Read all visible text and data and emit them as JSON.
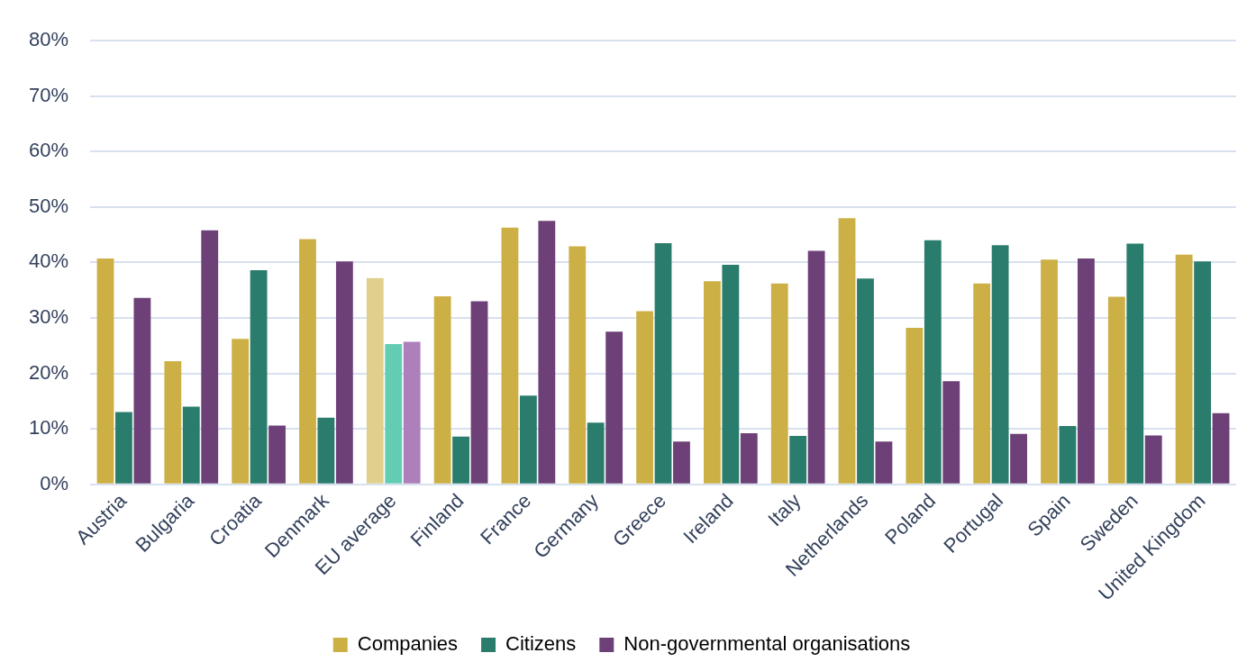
{
  "chart_data": {
    "type": "bar",
    "categories": [
      "Austria",
      "Bulgaria",
      "Croatia",
      "Denmark",
      "EU average",
      "Finland",
      "France",
      "Germany",
      "Greece",
      "Ireland",
      "Italy",
      "Netherlands",
      "Poland",
      "Portugal",
      "Spain",
      "Sweden",
      "United Kingdom"
    ],
    "series": [
      {
        "name": "Companies",
        "color": "#ccb045",
        "colors": [
          "#ccb045",
          "#ccb045",
          "#ccb045",
          "#ccb045",
          "#e0d08e",
          "#ccb045",
          "#ccb045",
          "#ccb045",
          "#ccb045",
          "#ccb045",
          "#ccb045",
          "#ccb045",
          "#ccb045",
          "#ccb045",
          "#ccb045",
          "#ccb045",
          "#ccb045"
        ],
        "values": [
          40.7,
          22.2,
          26.2,
          44.2,
          37.2,
          33.9,
          46.3,
          42.9,
          31.2,
          36.6,
          36.2,
          48.0,
          28.2,
          36.2,
          40.5,
          33.8,
          41.4
        ]
      },
      {
        "name": "Citizens",
        "color": "#2a7c6c",
        "colors": [
          "#2a7c6c",
          "#2a7c6c",
          "#2a7c6c",
          "#2a7c6c",
          "#63cdb4",
          "#2a7c6c",
          "#2a7c6c",
          "#2a7c6c",
          "#2a7c6c",
          "#2a7c6c",
          "#2a7c6c",
          "#2a7c6c",
          "#2a7c6c",
          "#2a7c6c",
          "#2a7c6c",
          "#2a7c6c",
          "#2a7c6c"
        ],
        "values": [
          13.0,
          14.0,
          38.6,
          12.0,
          25.3,
          8.6,
          16.0,
          11.1,
          43.5,
          39.6,
          8.7,
          37.1,
          44.0,
          43.1,
          10.5,
          43.4,
          40.2
        ]
      },
      {
        "name": "Non-governmental organisations",
        "color": "#6d4077",
        "colors": [
          "#6d4077",
          "#6d4077",
          "#6d4077",
          "#6d4077",
          "#ad80bb",
          "#6d4077",
          "#6d4077",
          "#6d4077",
          "#6d4077",
          "#6d4077",
          "#6d4077",
          "#6d4077",
          "#6d4077",
          "#6d4077",
          "#6d4077",
          "#6d4077",
          "#6d4077"
        ],
        "values": [
          33.6,
          45.8,
          10.6,
          40.2,
          25.7,
          33.0,
          47.5,
          27.5,
          7.7,
          9.2,
          42.1,
          7.7,
          18.6,
          9.1,
          40.7,
          8.8,
          12.8
        ]
      }
    ],
    "ylim": [
      0,
      80
    ],
    "yticks": [
      {
        "value": 0,
        "label": "0%"
      },
      {
        "value": 10,
        "label": "10%"
      },
      {
        "value": 20,
        "label": "20%"
      },
      {
        "value": 30,
        "label": "30%"
      },
      {
        "value": 40,
        "label": "40%"
      },
      {
        "value": 50,
        "label": "50%"
      },
      {
        "value": 60,
        "label": "60%"
      },
      {
        "value": 70,
        "label": "70%"
      },
      {
        "value": 80,
        "label": "80%"
      }
    ],
    "grid": "y",
    "legend": "bottom"
  }
}
